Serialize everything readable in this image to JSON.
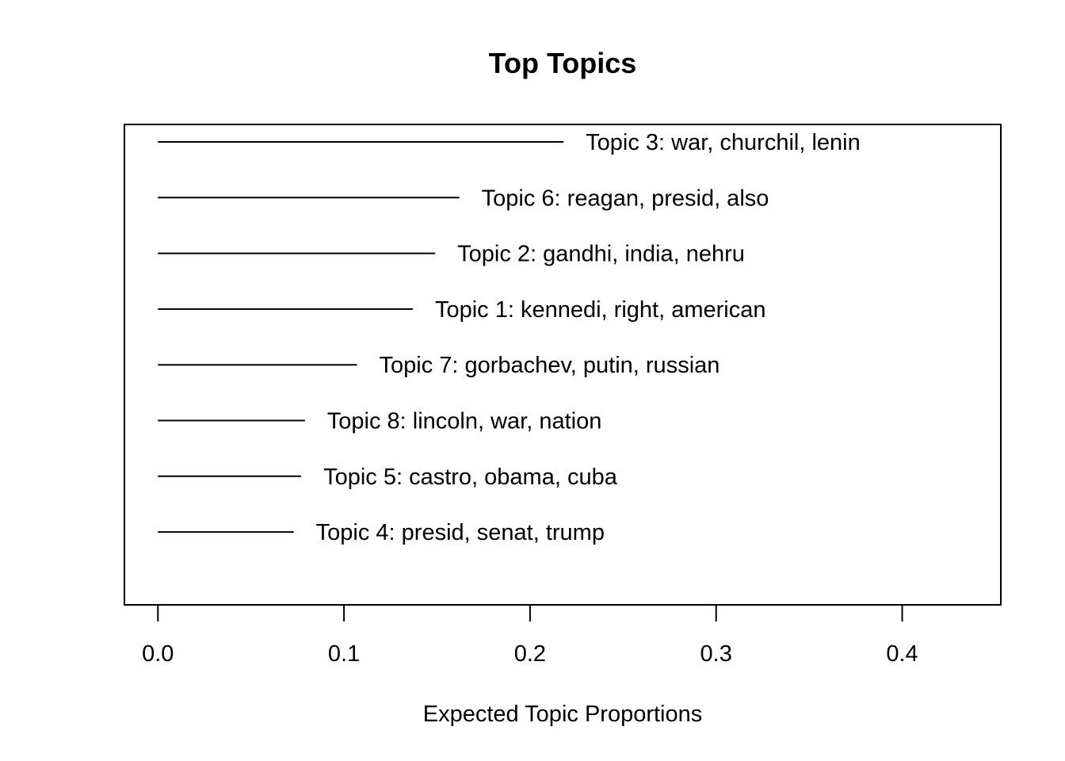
{
  "chart_data": {
    "type": "bar",
    "title": "Top Topics",
    "xlabel": "Expected Topic Proportions",
    "ylabel": "",
    "xlim": [
      -0.018,
      0.453
    ],
    "xticks": [
      0.0,
      0.1,
      0.2,
      0.3,
      0.4
    ],
    "xtick_labels": [
      "0.0",
      "0.1",
      "0.2",
      "0.3",
      "0.4"
    ],
    "grid": false,
    "categories": [
      "Topic 3: war, churchil, lenin",
      "Topic 6: reagan, presid, also",
      "Topic 2: gandhi, india, nehru",
      "Topic 1: kennedi, right, american",
      "Topic 7: gorbachev, putin, russian",
      "Topic 8: lincoln, war, nation",
      "Topic 5: castro, obama, cuba",
      "Topic 4: presid, senat, trump"
    ],
    "values": [
      0.218,
      0.162,
      0.149,
      0.137,
      0.107,
      0.079,
      0.077,
      0.073
    ]
  }
}
